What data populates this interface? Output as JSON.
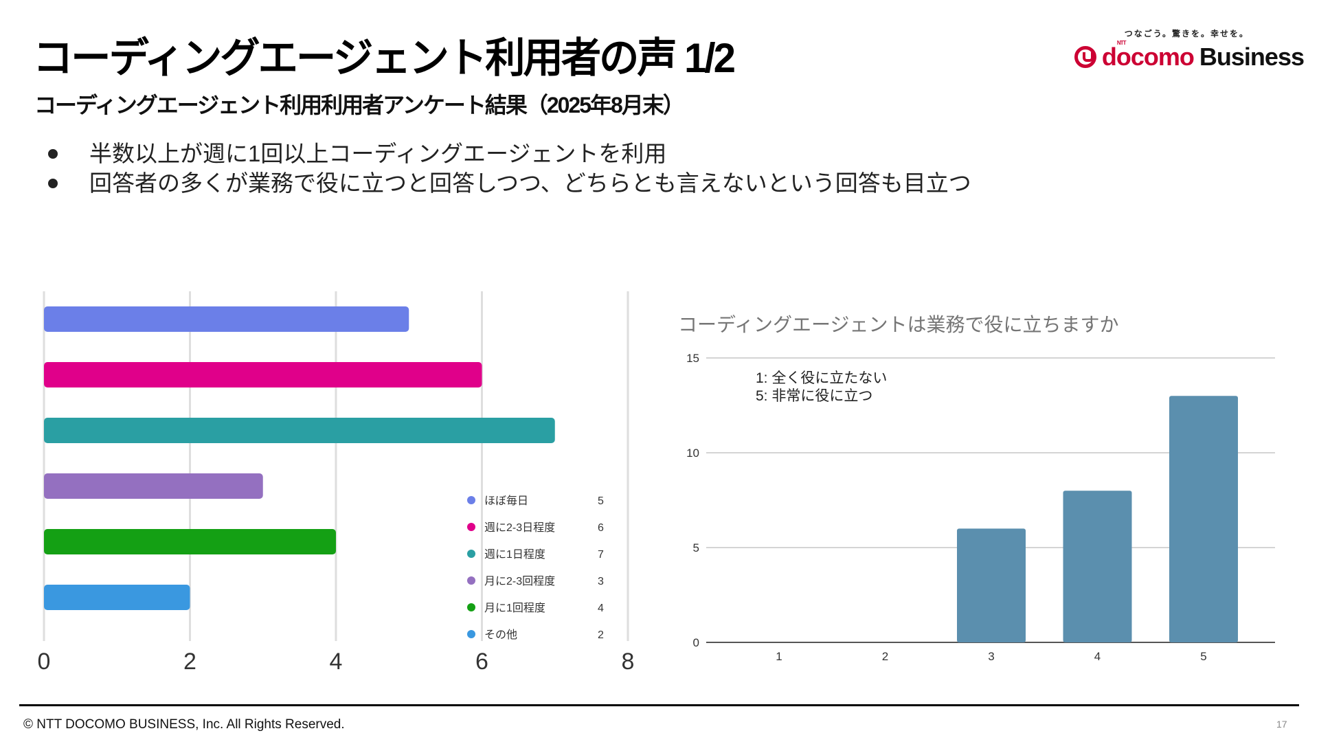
{
  "header": {
    "title": "コーディングエージェント利用者の声 1/2",
    "subtitle": "コーディングエージェント利用利用者アンケート結果（2025年8月末）"
  },
  "logo": {
    "tagline": "つなごう。驚きを。幸せを。",
    "ntt": "NTT",
    "docomo": "docomo",
    "business": "Business",
    "brand_color": "#cc0033"
  },
  "bullets": [
    "半数以上が週に1回以上コーディングエージェントを利用",
    "回答者の多くが業務で役に立つと回答しつつ、どちらとも言えないという回答も目立つ"
  ],
  "footer": {
    "copyright": "© NTT DOCOMO BUSINESS, Inc. All Rights Reserved.",
    "page_number": "17"
  },
  "chart_data": [
    {
      "type": "bar",
      "orientation": "horizontal",
      "title": "",
      "categories": [
        "ほぼ毎日",
        "週に2-3日程度",
        "週に1日程度",
        "月に2-3回程度",
        "月に1回程度",
        "その他"
      ],
      "values": [
        5,
        6,
        7,
        3,
        4,
        2
      ],
      "colors": [
        "#6b7fe8",
        "#e0008a",
        "#2a9fa3",
        "#9470c0",
        "#14a014",
        "#3a98e0"
      ],
      "xlim": [
        0,
        8
      ],
      "xticks": [
        "0",
        "2",
        "4",
        "6",
        "8"
      ],
      "grid": true,
      "legend": {
        "position": "bottom-right",
        "entries": [
          {
            "label": "ほぼ毎日",
            "value": "5"
          },
          {
            "label": "週に2-3日程度",
            "value": "6"
          },
          {
            "label": "週に1日程度",
            "value": "7"
          },
          {
            "label": "月に2-3回程度",
            "value": "3"
          },
          {
            "label": "月に1回程度",
            "value": "4"
          },
          {
            "label": "その他",
            "value": "2"
          }
        ]
      }
    },
    {
      "type": "bar",
      "orientation": "vertical",
      "title": "コーディングエージェントは業務で役に立ちますか",
      "categories": [
        "1",
        "2",
        "3",
        "4",
        "5"
      ],
      "values": [
        0,
        0,
        6,
        8,
        13
      ],
      "color": "#5b8fae",
      "ylim": [
        0,
        15
      ],
      "yticks": [
        "0",
        "5",
        "10",
        "15"
      ],
      "grid": true,
      "annotations": [
        "1: 全く役に立たない",
        "5: 非常に役に立つ"
      ]
    }
  ]
}
